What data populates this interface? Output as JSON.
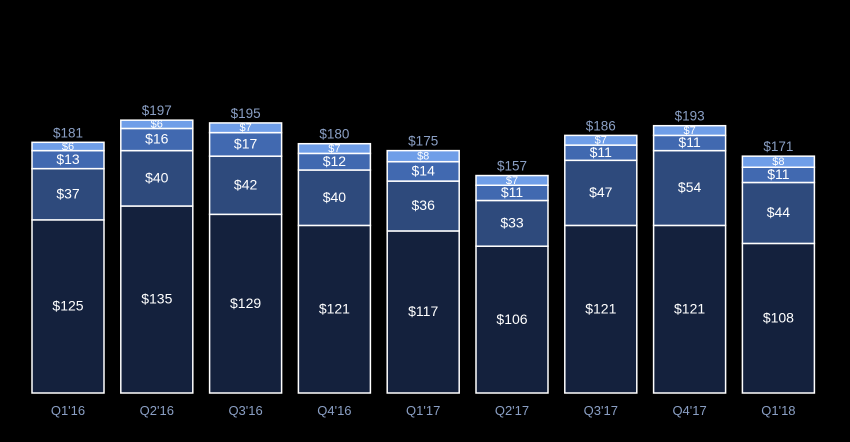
{
  "colors": {
    "background": "#000000",
    "outline": "#ffffff",
    "segment_fills": [
      "#14213d",
      "#2e4a7c",
      "#4169b0",
      "#6f9ee8"
    ],
    "axis_text": "#8a9fc4"
  },
  "chart_data": {
    "type": "bar",
    "stacked": true,
    "categories": [
      "Q1'16",
      "Q2'16",
      "Q3'16",
      "Q4'16",
      "Q1'17",
      "Q2'17",
      "Q3'17",
      "Q4'17",
      "Q1'18"
    ],
    "series": [
      {
        "values": [
          125,
          135,
          129,
          121,
          117,
          106,
          121,
          121,
          108
        ]
      },
      {
        "values": [
          37,
          40,
          42,
          40,
          36,
          33,
          47,
          54,
          44
        ]
      },
      {
        "values": [
          13,
          16,
          17,
          12,
          14,
          11,
          11,
          11,
          11
        ]
      },
      {
        "values": [
          6,
          6,
          7,
          7,
          8,
          7,
          7,
          7,
          8
        ]
      }
    ],
    "totals": [
      181,
      197,
      195,
      180,
      175,
      157,
      186,
      193,
      171
    ],
    "value_prefix": "$",
    "title": "",
    "xlabel": "",
    "ylabel": "",
    "ylim": [
      0,
      197
    ],
    "grid": false,
    "legend": "none"
  }
}
